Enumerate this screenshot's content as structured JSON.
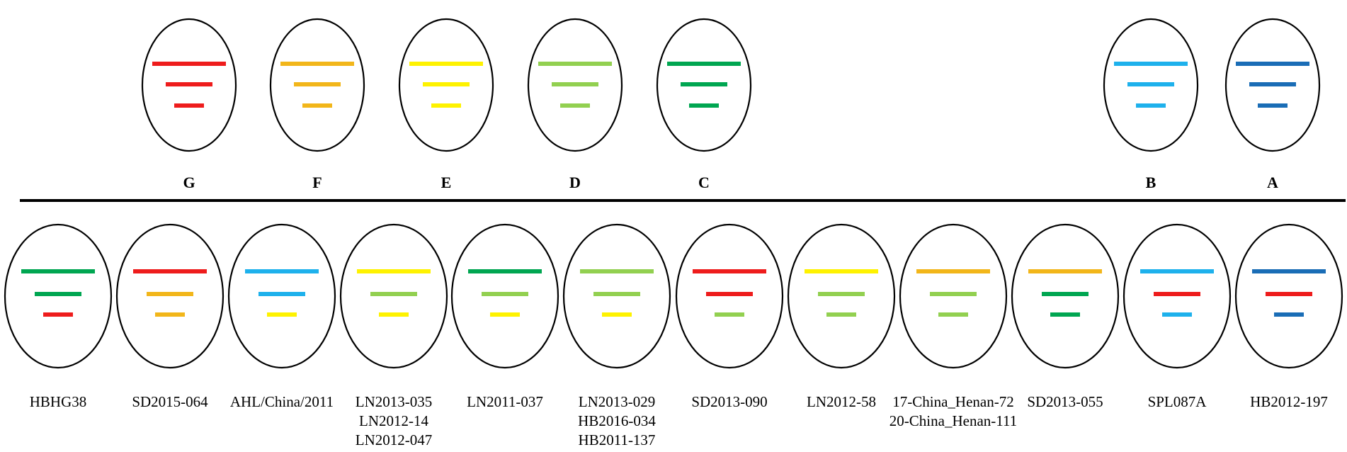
{
  "colors": {
    "G": "#ee1c1c",
    "F": "#f2b61a",
    "E": "#fef200",
    "D": "#92d050",
    "C": "#00a651",
    "B": "#1eb1ec",
    "A": "#1a6db6"
  },
  "reference_segments": [
    {
      "label": "G",
      "segments": [
        "G",
        "G",
        "G"
      ]
    },
    {
      "label": "F",
      "segments": [
        "F",
        "F",
        "F"
      ]
    },
    {
      "label": "E",
      "segments": [
        "E",
        "E",
        "E"
      ]
    },
    {
      "label": "D",
      "segments": [
        "D",
        "D",
        "D"
      ]
    },
    {
      "label": "C",
      "segments": [
        "C",
        "C",
        "C"
      ]
    },
    {
      "label": "B",
      "segments": [
        "B",
        "B",
        "B"
      ]
    },
    {
      "label": "A",
      "segments": [
        "A",
        "A",
        "A"
      ]
    }
  ],
  "strains": [
    {
      "names": [
        "HBHG38"
      ],
      "segments": [
        "C",
        "C",
        "G"
      ]
    },
    {
      "names": [
        "SD2015-064"
      ],
      "segments": [
        "G",
        "F",
        "F"
      ]
    },
    {
      "names": [
        "AHL/China/2011"
      ],
      "segments": [
        "B",
        "B",
        "E"
      ]
    },
    {
      "names": [
        "LN2013-035",
        "LN2012-14",
        "LN2012-047"
      ],
      "segments": [
        "E",
        "D",
        "E"
      ]
    },
    {
      "names": [
        "LN2011-037"
      ],
      "segments": [
        "C",
        "D",
        "E"
      ]
    },
    {
      "names": [
        "LN2013-029",
        "HB2016-034",
        "HB2011-137"
      ],
      "segments": [
        "D",
        "D",
        "E"
      ]
    },
    {
      "names": [
        "SD2013-090"
      ],
      "segments": [
        "G",
        "G",
        "D"
      ]
    },
    {
      "names": [
        "LN2012-58"
      ],
      "segments": [
        "E",
        "D",
        "D"
      ]
    },
    {
      "names": [
        "17-China_Henan-72",
        "20-China_Henan-111"
      ],
      "segments": [
        "F",
        "D",
        "D"
      ]
    },
    {
      "names": [
        "SD2013-055"
      ],
      "segments": [
        "F",
        "C",
        "C"
      ]
    },
    {
      "names": [
        "SPL087A"
      ],
      "segments": [
        "B",
        "G",
        "B"
      ]
    },
    {
      "names": [
        "HB2012-197"
      ],
      "segments": [
        "A",
        "G",
        "A"
      ]
    }
  ]
}
